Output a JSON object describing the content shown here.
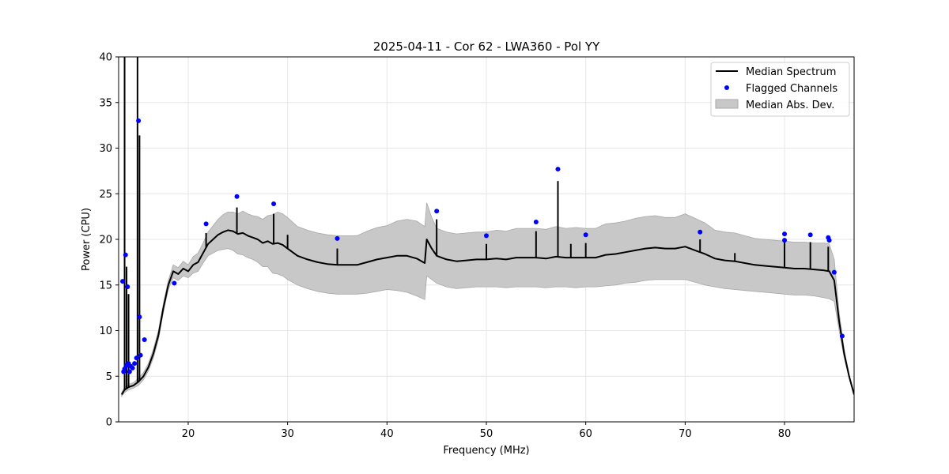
{
  "chart_data": {
    "type": "line",
    "title": "2025-04-11 - Cor 62 - LWA360 - Pol YY",
    "xlabel": "Frequency (MHz)",
    "ylabel": "Power (CPU)",
    "xlim": [
      13,
      87
    ],
    "ylim": [
      0,
      40
    ],
    "grid": true,
    "legend_position": "top-right",
    "x_ticks": [
      20,
      30,
      40,
      50,
      60,
      70,
      80
    ],
    "y_ticks": [
      0,
      5,
      10,
      15,
      20,
      25,
      30,
      35,
      40
    ],
    "legend": [
      {
        "label": "Median Spectrum",
        "kind": "line",
        "color": "#000000"
      },
      {
        "label": "Flagged Channels",
        "kind": "marker",
        "color": "#0000ff"
      },
      {
        "label": "Median Abs. Dev.",
        "kind": "band",
        "color": "#c8c8c8"
      }
    ],
    "colors": {
      "median": "#000000",
      "flagged": "#0000ff",
      "band": "#c8c8c8",
      "band_edge": "#a8a8a8",
      "grid": "#e6e6e6"
    },
    "median_spectrum": {
      "x": [
        13.3,
        13.6,
        14.0,
        14.5,
        15.0,
        15.5,
        16.0,
        16.5,
        17.0,
        17.5,
        18.0,
        18.5,
        19.0,
        19.5,
        20.0,
        20.5,
        21.0,
        21.5,
        22.0,
        22.5,
        23.0,
        23.5,
        24.0,
        24.5,
        25.0,
        25.5,
        26.0,
        26.5,
        27.0,
        27.5,
        28.0,
        28.5,
        29.0,
        29.5,
        30.0,
        31.0,
        32.0,
        33.0,
        34.0,
        35.0,
        36.0,
        37.0,
        38.0,
        39.0,
        40.0,
        41.0,
        42.0,
        43.0,
        43.8,
        44.0,
        44.5,
        45.0,
        46.0,
        47.0,
        48.0,
        49.0,
        50.0,
        51.0,
        52.0,
        53.0,
        54.0,
        55.0,
        56.0,
        57.0,
        58.0,
        59.0,
        60.0,
        61.0,
        62.0,
        63.0,
        64.0,
        65.0,
        66.0,
        67.0,
        68.0,
        69.0,
        70.0,
        71.0,
        72.0,
        73.0,
        74.0,
        75.0,
        76.0,
        77.0,
        78.0,
        79.0,
        80.0,
        81.0,
        82.0,
        83.0,
        84.0,
        84.5,
        85.0,
        85.5,
        86.0,
        86.5,
        87.0
      ],
      "y": [
        3.0,
        3.5,
        3.8,
        4.0,
        4.4,
        5.0,
        6.0,
        7.5,
        9.5,
        12.5,
        15.0,
        16.5,
        16.2,
        16.8,
        16.5,
        17.2,
        17.5,
        18.5,
        19.5,
        20.0,
        20.5,
        20.8,
        21.0,
        20.9,
        20.6,
        20.7,
        20.4,
        20.2,
        20.0,
        19.6,
        19.8,
        19.5,
        19.6,
        19.4,
        19.0,
        18.2,
        17.8,
        17.5,
        17.3,
        17.2,
        17.2,
        17.2,
        17.5,
        17.8,
        18.0,
        18.2,
        18.2,
        17.9,
        17.4,
        20.0,
        19.0,
        18.2,
        17.8,
        17.6,
        17.7,
        17.8,
        17.8,
        17.9,
        17.8,
        18.0,
        18.0,
        18.0,
        17.9,
        18.1,
        18.0,
        18.0,
        18.0,
        18.0,
        18.3,
        18.4,
        18.6,
        18.8,
        19.0,
        19.1,
        19.0,
        19.0,
        19.2,
        18.8,
        18.4,
        17.9,
        17.7,
        17.6,
        17.4,
        17.2,
        17.1,
        17.0,
        16.9,
        16.8,
        16.8,
        16.7,
        16.6,
        16.5,
        15.5,
        11.0,
        7.5,
        5.0,
        3.0
      ],
      "band_low": [
        2.8,
        3.2,
        3.5,
        3.7,
        4.0,
        4.6,
        5.6,
        7.0,
        9.0,
        12.0,
        14.5,
        15.8,
        15.5,
        16.0,
        15.8,
        16.3,
        16.5,
        17.4,
        18.2,
        18.5,
        18.8,
        18.9,
        19.0,
        18.8,
        18.4,
        18.3,
        18.0,
        17.8,
        17.5,
        17.0,
        17.0,
        16.3,
        16.2,
        16.0,
        15.6,
        15.0,
        14.6,
        14.3,
        14.1,
        14.0,
        14.0,
        14.0,
        14.1,
        14.3,
        14.5,
        14.4,
        14.2,
        13.8,
        13.4,
        16.0,
        15.6,
        15.2,
        14.8,
        14.6,
        14.7,
        14.8,
        14.8,
        14.8,
        14.7,
        14.8,
        14.8,
        14.8,
        14.7,
        14.8,
        14.8,
        14.7,
        14.8,
        14.8,
        14.9,
        15.0,
        15.2,
        15.3,
        15.5,
        15.6,
        15.6,
        15.6,
        15.6,
        15.3,
        15.0,
        14.8,
        14.6,
        14.5,
        14.4,
        14.3,
        14.2,
        14.1,
        14.0,
        13.9,
        13.9,
        13.8,
        13.6,
        13.5,
        13.2,
        10.0,
        7.0,
        4.8,
        2.9
      ],
      "band_high": [
        3.2,
        3.8,
        4.1,
        4.3,
        4.8,
        5.4,
        6.4,
        8.0,
        10.0,
        13.0,
        15.5,
        17.2,
        16.9,
        17.6,
        17.2,
        18.1,
        18.5,
        19.6,
        20.8,
        21.5,
        22.2,
        22.7,
        23.0,
        23.0,
        22.8,
        23.1,
        22.8,
        22.6,
        22.5,
        22.2,
        22.6,
        22.7,
        23.0,
        22.8,
        22.4,
        21.4,
        21.0,
        20.7,
        20.5,
        20.4,
        20.4,
        20.4,
        20.9,
        21.3,
        21.5,
        22.0,
        22.2,
        22.0,
        21.4,
        24.0,
        22.4,
        21.2,
        20.8,
        20.6,
        20.7,
        20.8,
        20.8,
        21.0,
        20.9,
        21.2,
        21.2,
        21.2,
        21.1,
        21.4,
        21.2,
        21.3,
        21.2,
        21.2,
        21.7,
        21.8,
        22.0,
        22.3,
        22.5,
        22.6,
        22.4,
        22.4,
        22.8,
        22.3,
        21.8,
        21.0,
        20.8,
        20.7,
        20.4,
        20.1,
        20.0,
        19.9,
        19.8,
        19.7,
        19.7,
        19.6,
        19.6,
        19.5,
        17.8,
        12.0,
        8.0,
        5.2,
        3.1
      ]
    },
    "spikes": [
      {
        "x": 13.6,
        "y": 40.0
      },
      {
        "x": 13.8,
        "y": 17.0
      },
      {
        "x": 14.0,
        "y": 14.0
      },
      {
        "x": 14.9,
        "y": 40.0
      },
      {
        "x": 15.1,
        "y": 31.4
      },
      {
        "x": 21.8,
        "y": 20.7
      },
      {
        "x": 24.9,
        "y": 23.5
      },
      {
        "x": 28.6,
        "y": 22.8
      },
      {
        "x": 30.0,
        "y": 20.5
      },
      {
        "x": 35.0,
        "y": 19.0
      },
      {
        "x": 45.0,
        "y": 22.2
      },
      {
        "x": 50.0,
        "y": 19.5
      },
      {
        "x": 55.0,
        "y": 20.9
      },
      {
        "x": 57.2,
        "y": 26.4
      },
      {
        "x": 58.5,
        "y": 19.5
      },
      {
        "x": 60.0,
        "y": 19.6
      },
      {
        "x": 71.5,
        "y": 20.0
      },
      {
        "x": 75.0,
        "y": 18.5
      },
      {
        "x": 80.0,
        "y": 19.8
      },
      {
        "x": 82.6,
        "y": 19.7
      },
      {
        "x": 84.4,
        "y": 19.2
      },
      {
        "x": 85.8,
        "y": 8.8
      }
    ],
    "flagged_channels": {
      "x": [
        13.4,
        13.5,
        13.6,
        13.7,
        13.8,
        13.9,
        14.0,
        14.1,
        14.2,
        14.4,
        14.6,
        14.8,
        15.0,
        15.1,
        15.2,
        15.6,
        18.6,
        21.8,
        24.9,
        28.6,
        35.0,
        45.0,
        50.0,
        55.0,
        57.2,
        60.0,
        71.5,
        80.0,
        80.0,
        82.6,
        84.4,
        84.5,
        85.0,
        85.8
      ],
      "y": [
        15.4,
        5.5,
        5.8,
        18.3,
        6.2,
        14.8,
        6.4,
        5.5,
        6.1,
        5.9,
        6.4,
        7.0,
        33.0,
        11.5,
        7.3,
        9.0,
        15.2,
        21.7,
        24.7,
        23.9,
        20.1,
        23.1,
        20.4,
        21.9,
        27.7,
        20.5,
        20.8,
        20.6,
        19.9,
        20.5,
        20.2,
        19.9,
        16.4,
        9.4
      ]
    }
  }
}
